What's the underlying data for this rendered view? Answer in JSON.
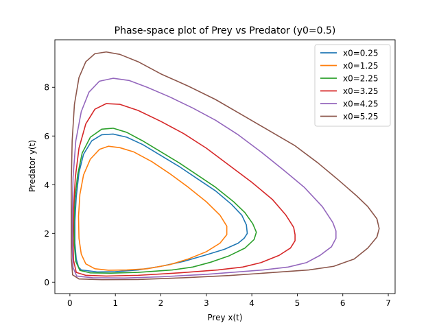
{
  "chart_data": {
    "type": "line",
    "title": "Phase-space plot of Prey vs Predator (y0=0.5)",
    "xlabel": "Prey x(t)",
    "ylabel": "Predator y(t)",
    "xlim": [
      -0.33,
      7.15
    ],
    "ylim": [
      -0.47,
      9.95
    ],
    "xticks": [
      0,
      1,
      2,
      3,
      4,
      5,
      6,
      7
    ],
    "yticks": [
      0,
      2,
      4,
      6,
      8
    ],
    "grid": false,
    "legend_position": "top-right",
    "series": [
      {
        "name": "x0=0.25",
        "color": "#1f77b4",
        "points": [
          [
            0.25,
            0.5
          ],
          [
            0.6,
            0.42
          ],
          [
            1.0,
            0.43
          ],
          [
            1.5,
            0.5
          ],
          [
            2.0,
            0.65
          ],
          [
            2.5,
            0.85
          ],
          [
            3.0,
            1.12
          ],
          [
            3.4,
            1.35
          ],
          [
            3.7,
            1.6
          ],
          [
            3.83,
            1.8
          ],
          [
            3.9,
            2.0
          ],
          [
            3.88,
            2.35
          ],
          [
            3.78,
            2.75
          ],
          [
            3.55,
            3.2
          ],
          [
            3.2,
            3.75
          ],
          [
            2.8,
            4.25
          ],
          [
            2.4,
            4.75
          ],
          [
            2.0,
            5.2
          ],
          [
            1.6,
            5.65
          ],
          [
            1.25,
            5.95
          ],
          [
            0.95,
            6.08
          ],
          [
            0.7,
            6.05
          ],
          [
            0.48,
            5.8
          ],
          [
            0.3,
            5.25
          ],
          [
            0.2,
            4.5
          ],
          [
            0.14,
            3.5
          ],
          [
            0.11,
            2.5
          ],
          [
            0.11,
            1.6
          ],
          [
            0.14,
            0.95
          ],
          [
            0.19,
            0.62
          ],
          [
            0.25,
            0.5
          ]
        ]
      },
      {
        "name": "x0=1.25",
        "color": "#ff7f0e",
        "points": [
          [
            1.25,
            0.5
          ],
          [
            1.7,
            0.55
          ],
          [
            2.2,
            0.72
          ],
          [
            2.6,
            0.95
          ],
          [
            3.0,
            1.25
          ],
          [
            3.3,
            1.6
          ],
          [
            3.45,
            1.95
          ],
          [
            3.45,
            2.3
          ],
          [
            3.3,
            2.75
          ],
          [
            3.0,
            3.3
          ],
          [
            2.6,
            3.9
          ],
          [
            2.2,
            4.45
          ],
          [
            1.8,
            4.95
          ],
          [
            1.4,
            5.35
          ],
          [
            1.1,
            5.52
          ],
          [
            0.85,
            5.58
          ],
          [
            0.65,
            5.45
          ],
          [
            0.45,
            5.05
          ],
          [
            0.3,
            4.4
          ],
          [
            0.22,
            3.6
          ],
          [
            0.19,
            2.7
          ],
          [
            0.2,
            1.8
          ],
          [
            0.25,
            1.15
          ],
          [
            0.35,
            0.75
          ],
          [
            0.55,
            0.55
          ],
          [
            0.85,
            0.49
          ],
          [
            1.25,
            0.5
          ]
        ]
      },
      {
        "name": "x0=2.25",
        "color": "#2ca02c",
        "points": [
          [
            2.25,
            0.5
          ],
          [
            2.7,
            0.62
          ],
          [
            3.1,
            0.82
          ],
          [
            3.5,
            1.08
          ],
          [
            3.85,
            1.4
          ],
          [
            4.05,
            1.75
          ],
          [
            4.1,
            2.05
          ],
          [
            4.02,
            2.4
          ],
          [
            3.85,
            2.85
          ],
          [
            3.6,
            3.3
          ],
          [
            3.2,
            3.9
          ],
          [
            2.8,
            4.4
          ],
          [
            2.4,
            4.9
          ],
          [
            2.0,
            5.35
          ],
          [
            1.6,
            5.8
          ],
          [
            1.25,
            6.15
          ],
          [
            0.95,
            6.32
          ],
          [
            0.7,
            6.28
          ],
          [
            0.45,
            5.95
          ],
          [
            0.27,
            5.3
          ],
          [
            0.17,
            4.4
          ],
          [
            0.11,
            3.4
          ],
          [
            0.09,
            2.4
          ],
          [
            0.1,
            1.5
          ],
          [
            0.13,
            0.85
          ],
          [
            0.22,
            0.48
          ],
          [
            0.45,
            0.38
          ],
          [
            0.9,
            0.37
          ],
          [
            1.5,
            0.4
          ],
          [
            2.25,
            0.5
          ]
        ]
      },
      {
        "name": "x0=3.25",
        "color": "#d62728",
        "points": [
          [
            3.25,
            0.5
          ],
          [
            3.8,
            0.62
          ],
          [
            4.2,
            0.8
          ],
          [
            4.6,
            1.1
          ],
          [
            4.85,
            1.4
          ],
          [
            4.95,
            1.7
          ],
          [
            4.95,
            1.95
          ],
          [
            4.92,
            2.25
          ],
          [
            4.75,
            2.75
          ],
          [
            4.45,
            3.4
          ],
          [
            4.0,
            4.1
          ],
          [
            3.5,
            4.8
          ],
          [
            3.0,
            5.5
          ],
          [
            2.5,
            6.1
          ],
          [
            2.0,
            6.6
          ],
          [
            1.5,
            7.05
          ],
          [
            1.1,
            7.3
          ],
          [
            0.8,
            7.33
          ],
          [
            0.55,
            7.1
          ],
          [
            0.35,
            6.5
          ],
          [
            0.2,
            5.5
          ],
          [
            0.12,
            4.3
          ],
          [
            0.08,
            3.0
          ],
          [
            0.07,
            1.8
          ],
          [
            0.08,
            0.9
          ],
          [
            0.14,
            0.4
          ],
          [
            0.35,
            0.28
          ],
          [
            0.8,
            0.25
          ],
          [
            1.5,
            0.28
          ],
          [
            2.4,
            0.38
          ],
          [
            3.25,
            0.5
          ]
        ]
      },
      {
        "name": "x0=4.25",
        "color": "#9467bd",
        "points": [
          [
            4.25,
            0.5
          ],
          [
            4.8,
            0.62
          ],
          [
            5.2,
            0.8
          ],
          [
            5.5,
            1.1
          ],
          [
            5.75,
            1.45
          ],
          [
            5.85,
            1.8
          ],
          [
            5.85,
            2.1
          ],
          [
            5.78,
            2.45
          ],
          [
            5.55,
            3.1
          ],
          [
            5.15,
            3.9
          ],
          [
            4.7,
            4.6
          ],
          [
            4.2,
            5.35
          ],
          [
            3.7,
            6.05
          ],
          [
            3.2,
            6.65
          ],
          [
            2.7,
            7.15
          ],
          [
            2.2,
            7.6
          ],
          [
            1.7,
            8.0
          ],
          [
            1.3,
            8.28
          ],
          [
            0.95,
            8.37
          ],
          [
            0.65,
            8.25
          ],
          [
            0.42,
            7.8
          ],
          [
            0.25,
            7.0
          ],
          [
            0.13,
            5.8
          ],
          [
            0.07,
            4.3
          ],
          [
            0.05,
            2.8
          ],
          [
            0.05,
            1.5
          ],
          [
            0.07,
            0.6
          ],
          [
            0.15,
            0.25
          ],
          [
            0.5,
            0.18
          ],
          [
            1.2,
            0.17
          ],
          [
            2.0,
            0.22
          ],
          [
            3.0,
            0.32
          ],
          [
            4.25,
            0.5
          ]
        ]
      },
      {
        "name": "x0=5.25",
        "color": "#8c564b",
        "points": [
          [
            5.25,
            0.5
          ],
          [
            5.8,
            0.65
          ],
          [
            6.25,
            0.95
          ],
          [
            6.55,
            1.4
          ],
          [
            6.75,
            1.85
          ],
          [
            6.8,
            2.2
          ],
          [
            6.75,
            2.6
          ],
          [
            6.55,
            3.1
          ],
          [
            6.3,
            3.55
          ],
          [
            5.9,
            4.2
          ],
          [
            5.45,
            4.9
          ],
          [
            4.95,
            5.6
          ],
          [
            4.4,
            6.2
          ],
          [
            3.8,
            6.85
          ],
          [
            3.2,
            7.5
          ],
          [
            2.6,
            8.05
          ],
          [
            2.0,
            8.55
          ],
          [
            1.5,
            9.05
          ],
          [
            1.1,
            9.35
          ],
          [
            0.8,
            9.45
          ],
          [
            0.55,
            9.38
          ],
          [
            0.35,
            9.05
          ],
          [
            0.2,
            8.4
          ],
          [
            0.1,
            7.3
          ],
          [
            0.05,
            5.8
          ],
          [
            0.03,
            4.0
          ],
          [
            0.03,
            2.3
          ],
          [
            0.03,
            1.0
          ],
          [
            0.06,
            0.3
          ],
          [
            0.2,
            0.13
          ],
          [
            0.7,
            0.1
          ],
          [
            1.5,
            0.11
          ],
          [
            2.5,
            0.18
          ],
          [
            3.5,
            0.27
          ],
          [
            4.5,
            0.4
          ],
          [
            5.25,
            0.5
          ]
        ]
      }
    ]
  }
}
